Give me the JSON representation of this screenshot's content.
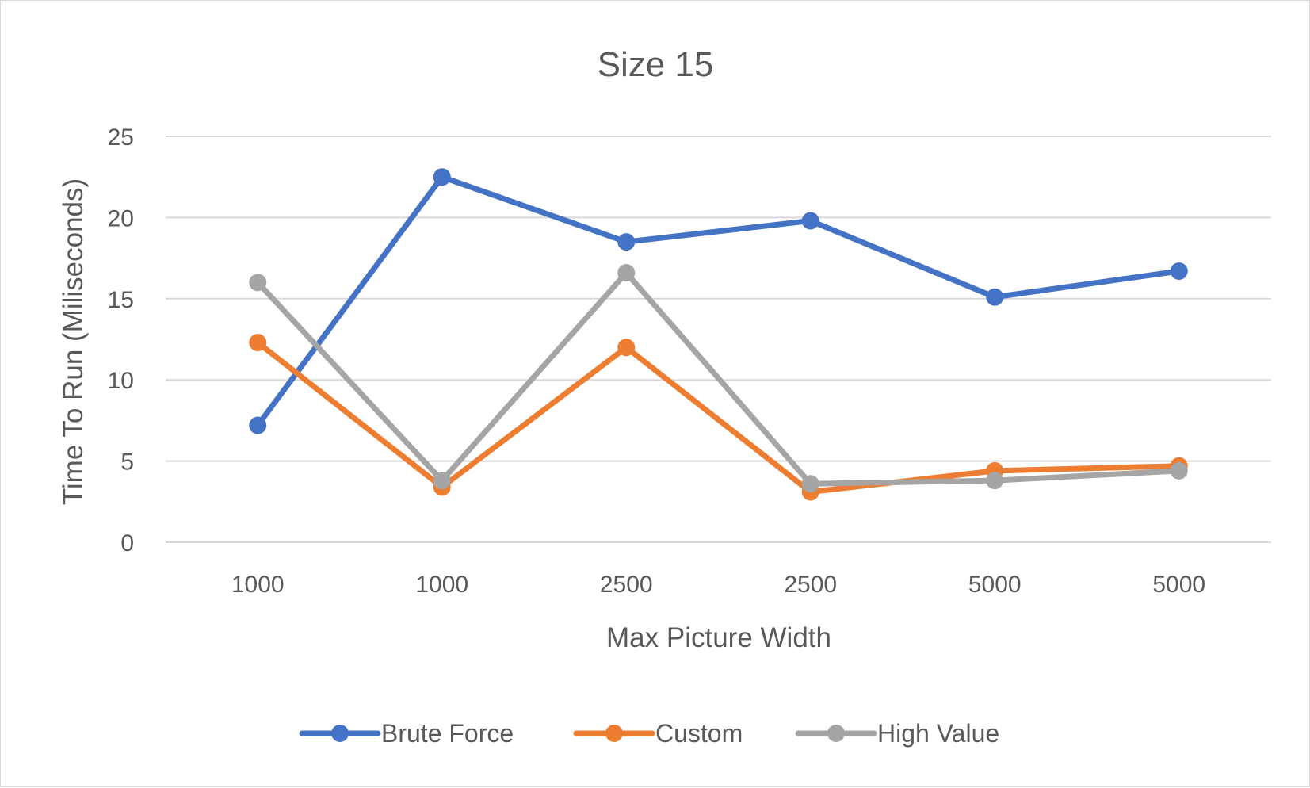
{
  "chart_data": {
    "type": "line",
    "title": "Size 15",
    "xlabel": "Max Picture Width",
    "ylabel": "Time To Run (Miliseconds)",
    "categories": [
      "1000",
      "1000",
      "2500",
      "2500",
      "5000",
      "5000"
    ],
    "ylim": [
      0,
      25
    ],
    "yticks": [
      "0",
      "5",
      "10",
      "15",
      "20",
      "25"
    ],
    "grid": true,
    "legend_position": "bottom",
    "series": [
      {
        "name": "Brute Force",
        "color": "#4472c4",
        "values": [
          7.2,
          22.5,
          18.5,
          19.8,
          15.1,
          16.7
        ]
      },
      {
        "name": "Custom",
        "color": "#ed7d31",
        "values": [
          12.3,
          3.4,
          12.0,
          3.1,
          4.4,
          4.7
        ]
      },
      {
        "name": "High Value",
        "color": "#a5a5a5",
        "values": [
          16.0,
          3.8,
          16.6,
          3.6,
          3.8,
          4.4
        ]
      }
    ]
  }
}
